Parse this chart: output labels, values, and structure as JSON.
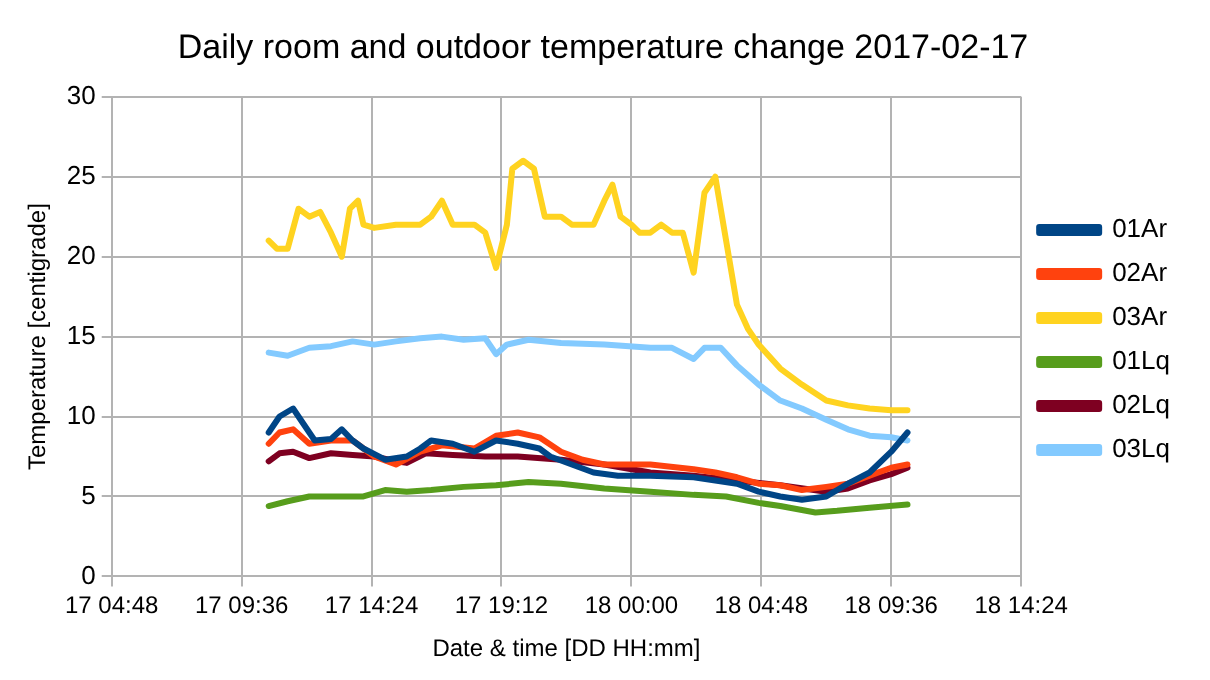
{
  "chart_data": {
    "type": "line",
    "title": "Daily room and outdoor temperature change 2017-02-17",
    "xlabel": "Date & time [DD HH:mm]",
    "ylabel": "Temperature [centigrade]",
    "xlim": [
      "2017-02-17T04:48",
      "2017-02-18T14:24"
    ],
    "xticks": [
      {
        "value": "2017-02-17T04:48",
        "label": "17 04:48"
      },
      {
        "value": "2017-02-17T09:36",
        "label": "17 09:36"
      },
      {
        "value": "2017-02-17T14:24",
        "label": "17 14:24"
      },
      {
        "value": "2017-02-17T19:12",
        "label": "17 19:12"
      },
      {
        "value": "2017-02-18T00:00",
        "label": "18 00:00"
      },
      {
        "value": "2017-02-18T04:48",
        "label": "18 04:48"
      },
      {
        "value": "2017-02-18T09:36",
        "label": "18 09:36"
      },
      {
        "value": "2017-02-18T14:24",
        "label": "18 14:24"
      }
    ],
    "ylim": [
      0,
      30
    ],
    "yticks": [
      0,
      5,
      10,
      15,
      20,
      25,
      30
    ],
    "grid": true,
    "legend": "right",
    "marker": "none",
    "line_style": "solid",
    "series": [
      {
        "name": "01Ar",
        "color": "#004586",
        "x": [
          "2017-02-17T10:36",
          "2017-02-17T11:00",
          "2017-02-17T11:30",
          "2017-02-17T11:54",
          "2017-02-17T12:18",
          "2017-02-17T12:54",
          "2017-02-17T13:18",
          "2017-02-17T13:42",
          "2017-02-17T14:06",
          "2017-02-17T14:54",
          "2017-02-17T15:42",
          "2017-02-17T16:12",
          "2017-02-17T16:36",
          "2017-02-17T17:24",
          "2017-02-17T18:12",
          "2017-02-17T19:00",
          "2017-02-17T19:48",
          "2017-02-17T20:36",
          "2017-02-17T21:00",
          "2017-02-17T21:48",
          "2017-02-17T22:36",
          "2017-02-17T23:30",
          "2017-02-18T00:42",
          "2017-02-18T02:18",
          "2017-02-18T03:06",
          "2017-02-18T03:54",
          "2017-02-18T04:42",
          "2017-02-18T05:30",
          "2017-02-18T06:18",
          "2017-02-18T07:12",
          "2017-02-18T08:00",
          "2017-02-18T08:48",
          "2017-02-18T09:36",
          "2017-02-18T10:12"
        ],
        "values": [
          9,
          10,
          10.5,
          9.5,
          8.5,
          8.6,
          9.2,
          8.5,
          8,
          7.3,
          7.5,
          8,
          8.5,
          8.3,
          7.8,
          8.5,
          8.3,
          8,
          7.5,
          7,
          6.5,
          6.3,
          6.3,
          6.2,
          6,
          5.8,
          5.3,
          5,
          4.8,
          5,
          5.8,
          6.5,
          7.8,
          9
        ]
      },
      {
        "name": "02Ar",
        "color": "#ff420e",
        "x": [
          "2017-02-17T10:36",
          "2017-02-17T11:00",
          "2017-02-17T11:30",
          "2017-02-17T12:06",
          "2017-02-17T12:54",
          "2017-02-17T13:42",
          "2017-02-17T14:30",
          "2017-02-17T15:18",
          "2017-02-17T16:12",
          "2017-02-17T17:00",
          "2017-02-17T18:12",
          "2017-02-17T19:00",
          "2017-02-17T19:48",
          "2017-02-17T20:36",
          "2017-02-17T21:24",
          "2017-02-17T22:12",
          "2017-02-17T23:00",
          "2017-02-18T00:42",
          "2017-02-18T02:18",
          "2017-02-18T03:06",
          "2017-02-18T03:54",
          "2017-02-18T04:42",
          "2017-02-18T05:30",
          "2017-02-18T06:18",
          "2017-02-18T07:12",
          "2017-02-18T08:00",
          "2017-02-18T08:48",
          "2017-02-18T09:36",
          "2017-02-18T10:12"
        ],
        "values": [
          8.3,
          9,
          9.2,
          8.3,
          8.5,
          8.5,
          7.5,
          7,
          7.8,
          8.2,
          8,
          8.8,
          9,
          8.7,
          7.8,
          7.3,
          7,
          7,
          6.7,
          6.5,
          6.2,
          5.8,
          5.7,
          5.4,
          5.6,
          5.8,
          6.3,
          6.8,
          7
        ]
      },
      {
        "name": "03Ar",
        "color": "#ffd320",
        "x": [
          "2017-02-17T10:36",
          "2017-02-17T10:54",
          "2017-02-17T11:18",
          "2017-02-17T11:42",
          "2017-02-17T12:06",
          "2017-02-17T12:30",
          "2017-02-17T12:54",
          "2017-02-17T13:18",
          "2017-02-17T13:36",
          "2017-02-17T13:54",
          "2017-02-17T14:06",
          "2017-02-17T14:30",
          "2017-02-17T15:18",
          "2017-02-17T16:12",
          "2017-02-17T16:36",
          "2017-02-17T17:00",
          "2017-02-17T17:24",
          "2017-02-17T18:12",
          "2017-02-17T18:36",
          "2017-02-17T19:00",
          "2017-02-17T19:24",
          "2017-02-17T19:36",
          "2017-02-17T20:00",
          "2017-02-17T20:24",
          "2017-02-17T20:48",
          "2017-02-17T21:24",
          "2017-02-17T21:48",
          "2017-02-17T22:12",
          "2017-02-17T22:36",
          "2017-02-17T23:00",
          "2017-02-17T23:18",
          "2017-02-17T23:36",
          "2017-02-18T00:00",
          "2017-02-18T00:18",
          "2017-02-18T00:42",
          "2017-02-18T01:06",
          "2017-02-18T01:30",
          "2017-02-18T01:54",
          "2017-02-18T02:18",
          "2017-02-18T02:42",
          "2017-02-18T03:06",
          "2017-02-18T03:30",
          "2017-02-18T03:54",
          "2017-02-18T04:18",
          "2017-02-18T04:42",
          "2017-02-18T05:30",
          "2017-02-18T06:18",
          "2017-02-18T07:12",
          "2017-02-18T08:00",
          "2017-02-18T08:48",
          "2017-02-18T09:36",
          "2017-02-18T10:12"
        ],
        "values": [
          21,
          20.5,
          20.5,
          23,
          22.5,
          22.8,
          21.5,
          20,
          23,
          23.5,
          22,
          21.8,
          22,
          22,
          22.5,
          23.5,
          22,
          22,
          21.5,
          19.3,
          22,
          25.5,
          26,
          25.5,
          22.5,
          22.5,
          22,
          22,
          22,
          23.5,
          24.5,
          22.5,
          22,
          21.5,
          21.5,
          22,
          21.5,
          21.5,
          19,
          24,
          25,
          21,
          17,
          15.5,
          14.5,
          13,
          12,
          11,
          10.7,
          10.5,
          10.4,
          10.4
        ]
      },
      {
        "name": "01Lq",
        "color": "#579d1c",
        "x": [
          "2017-02-17T10:36",
          "2017-02-17T11:18",
          "2017-02-17T12:06",
          "2017-02-17T12:54",
          "2017-02-17T14:06",
          "2017-02-17T14:54",
          "2017-02-17T15:42",
          "2017-02-17T16:36",
          "2017-02-17T17:48",
          "2017-02-17T19:00",
          "2017-02-17T20:12",
          "2017-02-17T21:24",
          "2017-02-17T23:00",
          "2017-02-18T00:42",
          "2017-02-18T02:18",
          "2017-02-18T03:30",
          "2017-02-18T04:42",
          "2017-02-18T05:30",
          "2017-02-18T06:48",
          "2017-02-18T07:36",
          "2017-02-18T08:48",
          "2017-02-18T10:12"
        ],
        "values": [
          4.4,
          4.7,
          5,
          5,
          5,
          5.4,
          5.3,
          5.4,
          5.6,
          5.7,
          5.9,
          5.8,
          5.5,
          5.3,
          5.1,
          5,
          4.6,
          4.4,
          4,
          4.1,
          4.3,
          4.5
        ]
      },
      {
        "name": "02Lq",
        "color": "#7e0021",
        "x": [
          "2017-02-17T10:36",
          "2017-02-17T11:00",
          "2017-02-17T11:30",
          "2017-02-17T12:06",
          "2017-02-17T12:54",
          "2017-02-17T13:42",
          "2017-02-17T14:30",
          "2017-02-17T15:18",
          "2017-02-17T15:42",
          "2017-02-17T16:24",
          "2017-02-17T17:24",
          "2017-02-17T18:36",
          "2017-02-17T19:48",
          "2017-02-17T21:24",
          "2017-02-17T23:00",
          "2017-02-18T00:42",
          "2017-02-18T02:18",
          "2017-02-18T03:54",
          "2017-02-18T05:30",
          "2017-02-18T07:12",
          "2017-02-18T08:00",
          "2017-02-18T08:48",
          "2017-02-18T09:36",
          "2017-02-18T10:12"
        ],
        "values": [
          7.2,
          7.7,
          7.8,
          7.4,
          7.7,
          7.6,
          7.5,
          7.2,
          7.1,
          7.7,
          7.6,
          7.5,
          7.5,
          7.3,
          7,
          6.5,
          6.3,
          6,
          5.7,
          5.3,
          5.5,
          6,
          6.4,
          6.8
        ]
      },
      {
        "name": "03Lq",
        "color": "#83caff",
        "x": [
          "2017-02-17T10:36",
          "2017-02-17T11:18",
          "2017-02-17T12:06",
          "2017-02-17T12:54",
          "2017-02-17T13:42",
          "2017-02-17T14:30",
          "2017-02-17T15:18",
          "2017-02-17T16:12",
          "2017-02-17T17:00",
          "2017-02-17T17:48",
          "2017-02-17T18:36",
          "2017-02-17T19:00",
          "2017-02-17T19:24",
          "2017-02-17T20:12",
          "2017-02-17T21:24",
          "2017-02-17T23:00",
          "2017-02-18T00:42",
          "2017-02-18T01:30",
          "2017-02-18T02:18",
          "2017-02-18T02:42",
          "2017-02-18T03:18",
          "2017-02-18T03:54",
          "2017-02-18T04:42",
          "2017-02-18T05:30",
          "2017-02-18T06:18",
          "2017-02-18T07:12",
          "2017-02-18T08:00",
          "2017-02-18T08:48",
          "2017-02-18T09:36",
          "2017-02-18T10:12"
        ],
        "values": [
          14,
          13.8,
          14.3,
          14.4,
          14.7,
          14.5,
          14.7,
          14.9,
          15,
          14.8,
          14.9,
          13.9,
          14.5,
          14.8,
          14.6,
          14.5,
          14.3,
          14.3,
          13.6,
          14.3,
          14.3,
          13.2,
          12,
          11,
          10.5,
          9.8,
          9.2,
          8.8,
          8.7,
          8.5
        ]
      }
    ]
  }
}
